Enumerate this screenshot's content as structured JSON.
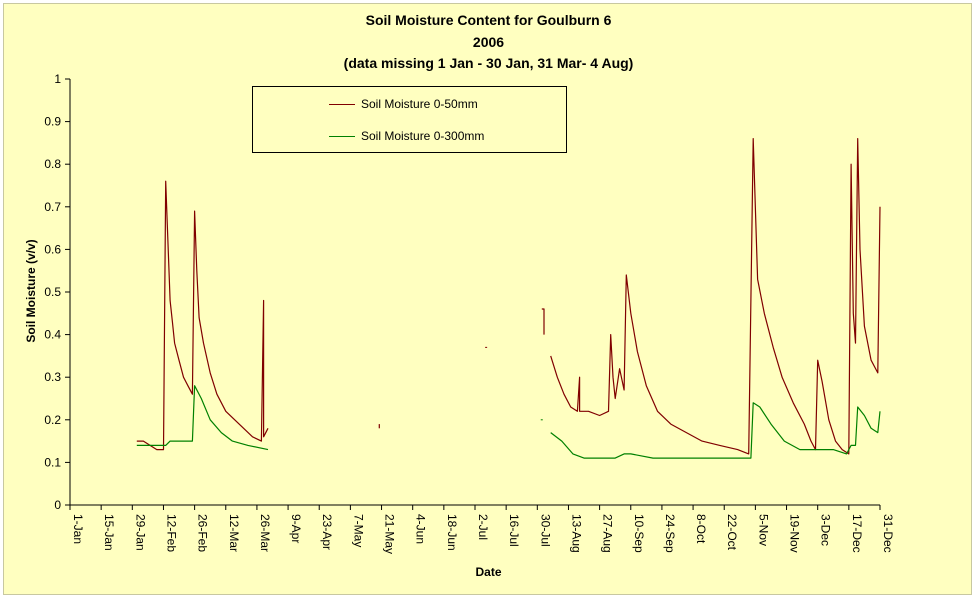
{
  "colors": {
    "plot_background": "#ffffc0",
    "series_0_50": "#800000",
    "series_0_300": "#008000",
    "axis": "#000000"
  },
  "chart_data": {
    "type": "line",
    "title_lines": [
      "Soil Moisture Content for Goulburn 6",
      "2006",
      "(data missing 1 Jan - 30 Jan,  31 Mar- 4 Aug)"
    ],
    "xlabel": "Date",
    "ylabel": "Soil Moisture (v/v)",
    "ylim": [
      0,
      1
    ],
    "yticks": [
      "0",
      "0.1",
      "0.2",
      "0.3",
      "0.4",
      "0.5",
      "0.6",
      "0.7",
      "0.8",
      "0.9",
      "1"
    ],
    "x_axis_type": "date",
    "xlim": [
      "2006-01-01",
      "2006-12-31"
    ],
    "xticks": [
      "1-Jan",
      "15-Jan",
      "29-Jan",
      "12-Feb",
      "26-Feb",
      "12-Mar",
      "26-Mar",
      "9-Apr",
      "23-Apr",
      "7-May",
      "21-May",
      "4-Jun",
      "18-Jun",
      "2-Jul",
      "16-Jul",
      "30-Jul",
      "13-Aug",
      "27-Aug",
      "10-Sep",
      "24-Sep",
      "8-Oct",
      "22-Oct",
      "5-Nov",
      "19-Nov",
      "3-Dec",
      "17-Dec",
      "31-Dec"
    ],
    "grid": false,
    "legend_position": "top-left",
    "series": [
      {
        "name": "Soil Moisture 0-50mm",
        "color": "#800000",
        "segments": [
          [
            [
              "2006-01-31",
              0.15
            ],
            [
              "2006-02-03",
              0.15
            ],
            [
              "2006-02-06",
              0.14
            ],
            [
              "2006-02-09",
              0.13
            ],
            [
              "2006-02-12",
              0.13
            ],
            [
              "2006-02-13",
              0.76
            ],
            [
              "2006-02-14",
              0.62
            ],
            [
              "2006-02-15",
              0.48
            ],
            [
              "2006-02-16",
              0.43
            ],
            [
              "2006-02-17",
              0.38
            ],
            [
              "2006-02-19",
              0.34
            ],
            [
              "2006-02-21",
              0.3
            ],
            [
              "2006-02-23",
              0.28
            ],
            [
              "2006-02-25",
              0.26
            ],
            [
              "2006-02-26",
              0.69
            ],
            [
              "2006-02-27",
              0.55
            ],
            [
              "2006-02-28",
              0.44
            ],
            [
              "2006-03-02",
              0.38
            ],
            [
              "2006-03-05",
              0.31
            ],
            [
              "2006-03-08",
              0.26
            ],
            [
              "2006-03-12",
              0.22
            ],
            [
              "2006-03-16",
              0.2
            ],
            [
              "2006-03-20",
              0.18
            ],
            [
              "2006-03-24",
              0.16
            ],
            [
              "2006-03-28",
              0.15
            ],
            [
              "2006-03-29",
              0.48
            ],
            [
              "2006-03-29",
              0.16
            ],
            [
              "2006-03-31",
              0.18
            ]
          ],
          [
            [
              "2006-05-20",
              0.19
            ],
            [
              "2006-05-20",
              0.18
            ]
          ],
          [
            [
              "2006-07-07",
              0.37
            ],
            [
              "2006-07-07",
              0.37
            ]
          ],
          [
            [
              "2006-08-01",
              0.46
            ],
            [
              "2006-08-02",
              0.46
            ],
            [
              "2006-08-02",
              0.4
            ]
          ],
          [
            [
              "2006-08-05",
              0.35
            ],
            [
              "2006-08-08",
              0.3
            ],
            [
              "2006-08-11",
              0.26
            ],
            [
              "2006-08-14",
              0.23
            ],
            [
              "2006-08-17",
              0.22
            ],
            [
              "2006-08-18",
              0.3
            ],
            [
              "2006-08-18",
              0.22
            ],
            [
              "2006-08-22",
              0.22
            ],
            [
              "2006-08-27",
              0.21
            ],
            [
              "2006-08-31",
              0.22
            ],
            [
              "2006-09-01",
              0.4
            ],
            [
              "2006-09-02",
              0.3
            ],
            [
              "2006-09-03",
              0.25
            ],
            [
              "2006-09-05",
              0.32
            ],
            [
              "2006-09-07",
              0.27
            ],
            [
              "2006-09-08",
              0.54
            ],
            [
              "2006-09-10",
              0.45
            ],
            [
              "2006-09-13",
              0.36
            ],
            [
              "2006-09-17",
              0.28
            ],
            [
              "2006-09-22",
              0.22
            ],
            [
              "2006-09-28",
              0.19
            ],
            [
              "2006-10-05",
              0.17
            ],
            [
              "2006-10-12",
              0.15
            ],
            [
              "2006-10-20",
              0.14
            ],
            [
              "2006-10-28",
              0.13
            ],
            [
              "2006-11-02",
              0.12
            ],
            [
              "2006-11-04",
              0.86
            ],
            [
              "2006-11-06",
              0.53
            ],
            [
              "2006-11-09",
              0.45
            ],
            [
              "2006-11-13",
              0.37
            ],
            [
              "2006-11-17",
              0.3
            ],
            [
              "2006-11-22",
              0.24
            ],
            [
              "2006-11-27",
              0.19
            ],
            [
              "2006-11-30",
              0.15
            ],
            [
              "2006-12-02",
              0.13
            ],
            [
              "2006-12-03",
              0.34
            ],
            [
              "2006-12-05",
              0.29
            ],
            [
              "2006-12-08",
              0.2
            ],
            [
              "2006-12-11",
              0.15
            ],
            [
              "2006-12-14",
              0.13
            ],
            [
              "2006-12-17",
              0.12
            ],
            [
              "2006-12-18",
              0.8
            ],
            [
              "2006-12-19",
              0.45
            ],
            [
              "2006-12-20",
              0.38
            ],
            [
              "2006-12-21",
              0.86
            ],
            [
              "2006-12-22",
              0.6
            ],
            [
              "2006-12-24",
              0.42
            ],
            [
              "2006-12-27",
              0.34
            ],
            [
              "2006-12-30",
              0.31
            ],
            [
              "2006-12-31",
              0.7
            ]
          ]
        ]
      },
      {
        "name": "Soil Moisture 0-300mm",
        "color": "#008000",
        "segments": [
          [
            [
              "2006-01-31",
              0.14
            ],
            [
              "2006-02-05",
              0.14
            ],
            [
              "2006-02-10",
              0.14
            ],
            [
              "2006-02-13",
              0.14
            ],
            [
              "2006-02-15",
              0.15
            ],
            [
              "2006-02-20",
              0.15
            ],
            [
              "2006-02-25",
              0.15
            ],
            [
              "2006-02-26",
              0.28
            ],
            [
              "2006-03-01",
              0.25
            ],
            [
              "2006-03-05",
              0.2
            ],
            [
              "2006-03-10",
              0.17
            ],
            [
              "2006-03-15",
              0.15
            ],
            [
              "2006-03-22",
              0.14
            ],
            [
              "2006-03-31",
              0.13
            ]
          ],
          [
            [
              "2006-08-01",
              0.2
            ],
            [
              "2006-08-01",
              0.2
            ]
          ],
          [
            [
              "2006-08-05",
              0.17
            ],
            [
              "2006-08-10",
              0.15
            ],
            [
              "2006-08-15",
              0.12
            ],
            [
              "2006-08-20",
              0.11
            ],
            [
              "2006-08-27",
              0.11
            ],
            [
              "2006-09-03",
              0.11
            ],
            [
              "2006-09-07",
              0.12
            ],
            [
              "2006-09-10",
              0.12
            ],
            [
              "2006-09-20",
              0.11
            ],
            [
              "2006-10-05",
              0.11
            ],
            [
              "2006-10-20",
              0.11
            ],
            [
              "2006-11-03",
              0.11
            ],
            [
              "2006-11-04",
              0.24
            ],
            [
              "2006-11-07",
              0.23
            ],
            [
              "2006-11-12",
              0.19
            ],
            [
              "2006-11-18",
              0.15
            ],
            [
              "2006-11-25",
              0.13
            ],
            [
              "2006-12-02",
              0.13
            ],
            [
              "2006-12-10",
              0.13
            ],
            [
              "2006-12-16",
              0.12
            ],
            [
              "2006-12-18",
              0.14
            ],
            [
              "2006-12-20",
              0.14
            ],
            [
              "2006-12-21",
              0.23
            ],
            [
              "2006-12-24",
              0.21
            ],
            [
              "2006-12-27",
              0.18
            ],
            [
              "2006-12-30",
              0.17
            ],
            [
              "2006-12-31",
              0.22
            ]
          ]
        ]
      }
    ]
  }
}
